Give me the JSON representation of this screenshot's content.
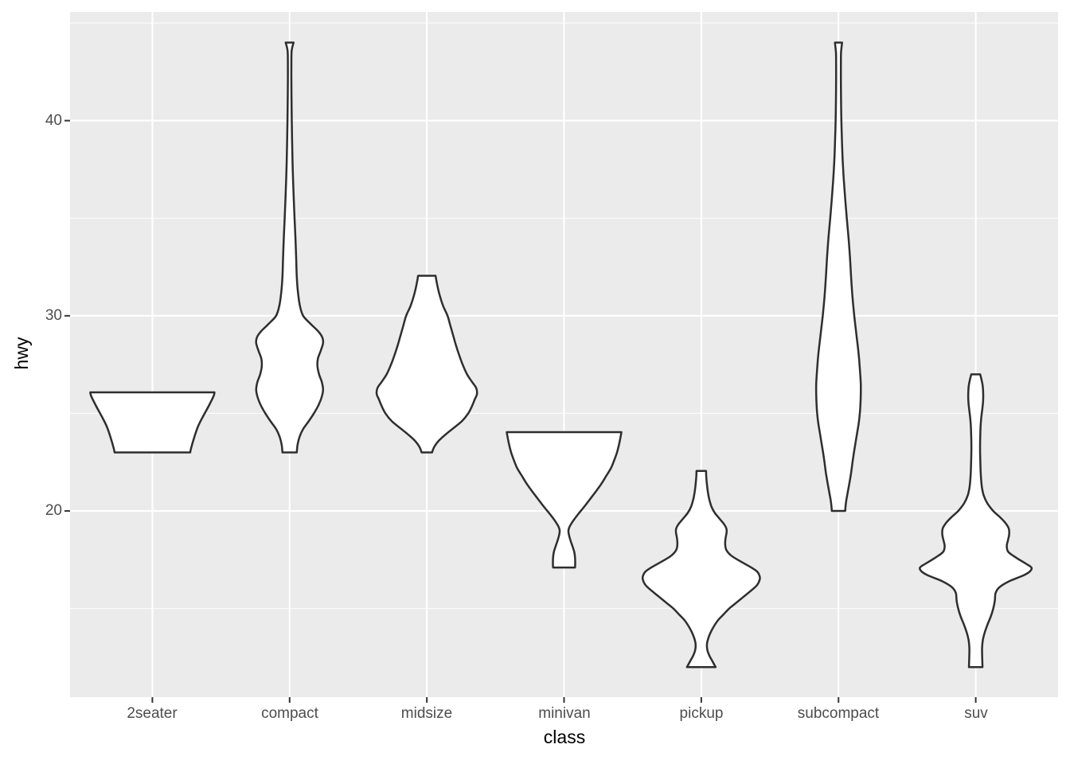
{
  "chart_data": {
    "type": "violin",
    "title": "",
    "xlabel": "class",
    "ylabel": "hwy",
    "x_categories": [
      "2seater",
      "compact",
      "midsize",
      "minivan",
      "pickup",
      "subcompact",
      "suv"
    ],
    "y_ticks": [
      20,
      30,
      40
    ],
    "y_minor_ticks": [
      15,
      25,
      35,
      45
    ],
    "ylim": [
      10.46,
      45.57
    ],
    "grid": true,
    "legend": "none",
    "panel_bg_color": "#EBEBEB",
    "gridline_color": "#FFFFFF",
    "violin_stroke_color": "#2E2E2E",
    "violin_fill_color": "#FFFFFF",
    "axis_tick_color": "#333333",
    "axis_text_color": "#4D4D4D",
    "violins": [
      {
        "category": "2seater",
        "hwy_min": 23,
        "hwy_max": 26,
        "profile": [
          [
            26.08,
            78
          ],
          [
            25.9,
            77
          ],
          [
            25.4,
            71
          ],
          [
            24.8,
            63
          ],
          [
            24.3,
            57
          ],
          [
            23.7,
            52
          ],
          [
            23.2,
            48.5
          ],
          [
            23.0,
            47.5
          ]
        ]
      },
      {
        "category": "compact",
        "hwy_min": 23,
        "hwy_max": 44,
        "profile": [
          [
            44.0,
            5
          ],
          [
            43.6,
            2.6
          ],
          [
            43.0,
            2.2
          ],
          [
            42.0,
            2.2
          ],
          [
            41.0,
            2.4
          ],
          [
            40.0,
            2.7
          ],
          [
            39.0,
            3.1
          ],
          [
            38.0,
            3.6
          ],
          [
            37.0,
            4.3
          ],
          [
            36.0,
            5.2
          ],
          [
            35.0,
            6.2
          ],
          [
            34.0,
            7.3
          ],
          [
            33.0,
            8.2
          ],
          [
            32.0,
            9.0
          ],
          [
            31.2,
            10.5
          ],
          [
            30.5,
            13.0
          ],
          [
            30.0,
            17.0
          ],
          [
            29.6,
            26.0
          ],
          [
            29.2,
            36.0
          ],
          [
            28.9,
            41.0
          ],
          [
            28.6,
            42.0
          ],
          [
            28.2,
            39.0
          ],
          [
            27.8,
            35.5
          ],
          [
            27.4,
            35.0
          ],
          [
            27.0,
            37.0
          ],
          [
            26.6,
            40.5
          ],
          [
            26.2,
            42.0
          ],
          [
            25.8,
            40.0
          ],
          [
            25.4,
            36.0
          ],
          [
            25.0,
            30.5
          ],
          [
            24.6,
            24.0
          ],
          [
            24.2,
            17.0
          ],
          [
            23.8,
            12.5
          ],
          [
            23.4,
            10.0
          ],
          [
            23.0,
            9.0
          ]
        ]
      },
      {
        "category": "midsize",
        "hwy_min": 23,
        "hwy_max": 32,
        "profile": [
          [
            32.05,
            11
          ],
          [
            31.8,
            12
          ],
          [
            31.4,
            14
          ],
          [
            31.0,
            16.5
          ],
          [
            30.5,
            20.5
          ],
          [
            30.0,
            26
          ],
          [
            29.5,
            29.5
          ],
          [
            29.0,
            33
          ],
          [
            28.5,
            36.5
          ],
          [
            28.0,
            40.5
          ],
          [
            27.5,
            45
          ],
          [
            27.0,
            50.5
          ],
          [
            26.6,
            57
          ],
          [
            26.3,
            62
          ],
          [
            26.0,
            63
          ],
          [
            25.7,
            60
          ],
          [
            25.4,
            57
          ],
          [
            25.0,
            52
          ],
          [
            24.6,
            44
          ],
          [
            24.2,
            32
          ],
          [
            23.9,
            23
          ],
          [
            23.6,
            15
          ],
          [
            23.3,
            9.5
          ],
          [
            23.0,
            6.5
          ]
        ]
      },
      {
        "category": "minivan",
        "hwy_min": 17,
        "hwy_max": 24,
        "profile": [
          [
            24.04,
            72
          ],
          [
            23.8,
            71
          ],
          [
            23.4,
            69
          ],
          [
            23.0,
            66.5
          ],
          [
            22.6,
            63
          ],
          [
            22.2,
            59
          ],
          [
            21.8,
            53
          ],
          [
            21.4,
            47
          ],
          [
            21.0,
            40
          ],
          [
            20.6,
            32.5
          ],
          [
            20.2,
            25
          ],
          [
            19.8,
            17
          ],
          [
            19.5,
            11.5
          ],
          [
            19.2,
            7
          ],
          [
            19.0,
            5.5
          ],
          [
            18.8,
            6
          ],
          [
            18.5,
            8
          ],
          [
            18.2,
            10.5
          ],
          [
            17.9,
            12.8
          ],
          [
            17.6,
            13.8
          ],
          [
            17.3,
            14
          ],
          [
            17.1,
            13.8
          ]
        ]
      },
      {
        "category": "pickup",
        "hwy_min": 12,
        "hwy_max": 22,
        "profile": [
          [
            22.05,
            6
          ],
          [
            21.8,
            6.2
          ],
          [
            21.4,
            7
          ],
          [
            21.0,
            8.2
          ],
          [
            20.6,
            10
          ],
          [
            20.2,
            13
          ],
          [
            19.9,
            17
          ],
          [
            19.6,
            23
          ],
          [
            19.3,
            29
          ],
          [
            19.1,
            31.5
          ],
          [
            18.9,
            31.8
          ],
          [
            18.6,
            30.5
          ],
          [
            18.3,
            30
          ],
          [
            18.0,
            31.5
          ],
          [
            17.7,
            38
          ],
          [
            17.4,
            50
          ],
          [
            17.1,
            63
          ],
          [
            16.9,
            70
          ],
          [
            16.7,
            73
          ],
          [
            16.5,
            73.5
          ],
          [
            16.2,
            70
          ],
          [
            15.9,
            62
          ],
          [
            15.6,
            53
          ],
          [
            15.3,
            44
          ],
          [
            15.0,
            35
          ],
          [
            14.7,
            28
          ],
          [
            14.4,
            21
          ],
          [
            14.1,
            16
          ],
          [
            13.8,
            12
          ],
          [
            13.5,
            9
          ],
          [
            13.2,
            7.2
          ],
          [
            12.9,
            7.5
          ],
          [
            12.6,
            10
          ],
          [
            12.3,
            14
          ],
          [
            12.0,
            18
          ]
        ]
      },
      {
        "category": "subcompact",
        "hwy_min": 20,
        "hwy_max": 44,
        "profile": [
          [
            44.0,
            4.5
          ],
          [
            43.5,
            3.2
          ],
          [
            43.0,
            3.0
          ],
          [
            42.0,
            3.0
          ],
          [
            41.0,
            3.2
          ],
          [
            40.0,
            3.6
          ],
          [
            39.0,
            4.3
          ],
          [
            38.0,
            5.2
          ],
          [
            37.0,
            6.6
          ],
          [
            36.0,
            8.4
          ],
          [
            35.0,
            10.4
          ],
          [
            34.0,
            12.6
          ],
          [
            33.0,
            14.4
          ],
          [
            32.0,
            15.8
          ],
          [
            31.0,
            17.5
          ],
          [
            30.0,
            19.8
          ],
          [
            29.0,
            22.6
          ],
          [
            28.0,
            25.4
          ],
          [
            27.0,
            27.3
          ],
          [
            26.5,
            28.0
          ],
          [
            26.0,
            28.0
          ],
          [
            25.5,
            27.6
          ],
          [
            25.0,
            26.8
          ],
          [
            24.5,
            25.4
          ],
          [
            24.0,
            23.4
          ],
          [
            23.5,
            21.4
          ],
          [
            23.0,
            19.4
          ],
          [
            22.5,
            17.6
          ],
          [
            22.0,
            16.0
          ],
          [
            21.5,
            14.0
          ],
          [
            21.0,
            11.8
          ],
          [
            20.6,
            10.0
          ],
          [
            20.3,
            9.0
          ],
          [
            20.0,
            8.4
          ]
        ]
      },
      {
        "category": "suv",
        "hwy_min": 12,
        "hwy_max": 27,
        "profile": [
          [
            27.0,
            5.6
          ],
          [
            26.7,
            7.4
          ],
          [
            26.4,
            8.8
          ],
          [
            26.0,
            9.4
          ],
          [
            25.6,
            9.2
          ],
          [
            25.2,
            8.2
          ],
          [
            24.8,
            7.0
          ],
          [
            24.4,
            6.2
          ],
          [
            24.0,
            5.8
          ],
          [
            23.5,
            5.5
          ],
          [
            23.0,
            5.5
          ],
          [
            22.5,
            5.8
          ],
          [
            22.0,
            6.2
          ],
          [
            21.6,
            6.8
          ],
          [
            21.2,
            7.8
          ],
          [
            20.8,
            10.0
          ],
          [
            20.4,
            14.5
          ],
          [
            20.0,
            22.0
          ],
          [
            19.7,
            30.0
          ],
          [
            19.4,
            37.0
          ],
          [
            19.1,
            41.5
          ],
          [
            18.8,
            42.0
          ],
          [
            18.5,
            40.5
          ],
          [
            18.2,
            39.0
          ],
          [
            17.9,
            41.0
          ],
          [
            17.6,
            51.0
          ],
          [
            17.3,
            63.0
          ],
          [
            17.1,
            70.0
          ],
          [
            16.9,
            68.0
          ],
          [
            16.7,
            60.0
          ],
          [
            16.4,
            42.0
          ],
          [
            16.1,
            30.0
          ],
          [
            15.8,
            25.0
          ],
          [
            15.4,
            24.0
          ],
          [
            15.0,
            22.0
          ],
          [
            14.6,
            19.0
          ],
          [
            14.2,
            15.0
          ],
          [
            13.8,
            11.5
          ],
          [
            13.4,
            9.0
          ],
          [
            13.0,
            8.0
          ],
          [
            12.7,
            8.0
          ],
          [
            12.4,
            8.2
          ],
          [
            12.0,
            8.5
          ]
        ]
      }
    ]
  }
}
